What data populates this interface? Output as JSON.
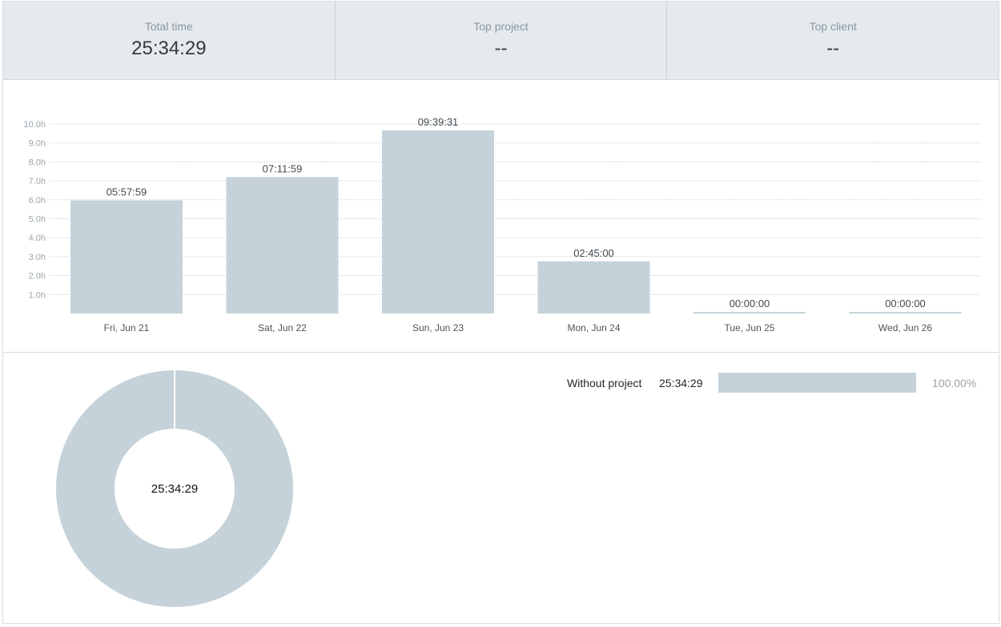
{
  "summary": {
    "total_time_label": "Total time",
    "total_time_value": "25:34:29",
    "top_project_label": "Top project",
    "top_project_value": "--",
    "top_client_label": "Top client",
    "top_client_value": "--"
  },
  "colors": {
    "bar": "#c5d2d9",
    "summary_bg": "#e4eaee",
    "grid": "#c9d1d6"
  },
  "chart_data": [
    {
      "type": "bar",
      "categories": [
        "Fri, Jun 21",
        "Sat, Jun 22",
        "Sun, Jun 23",
        "Mon, Jun 24",
        "Tue, Jun 25",
        "Wed, Jun 26"
      ],
      "values": [
        5.9664,
        7.1997,
        9.6586,
        2.75,
        0,
        0
      ],
      "value_labels": [
        "05:57:59",
        "07:11:59",
        "09:39:31",
        "02:45:00",
        "00:00:00",
        "00:00:00"
      ],
      "y_ticks": [
        "1.0h",
        "2.0h",
        "3.0h",
        "4.0h",
        "5.0h",
        "6.0h",
        "7.0h",
        "8.0h",
        "9.0h",
        "10.0h"
      ],
      "y_tick_values": [
        1,
        2,
        3,
        4,
        5,
        6,
        7,
        8,
        9,
        10
      ],
      "ylim": [
        0,
        10
      ],
      "grid": true,
      "title": "",
      "xlabel": "",
      "ylabel": ""
    },
    {
      "type": "pie",
      "labels": [
        "Without project"
      ],
      "values": [
        100
      ],
      "center_label": "25:34:29"
    }
  ],
  "legend": {
    "items": [
      {
        "name": "Without project",
        "time": "25:34:29",
        "percent_value": 100,
        "percent_label": "100.00%"
      }
    ]
  }
}
